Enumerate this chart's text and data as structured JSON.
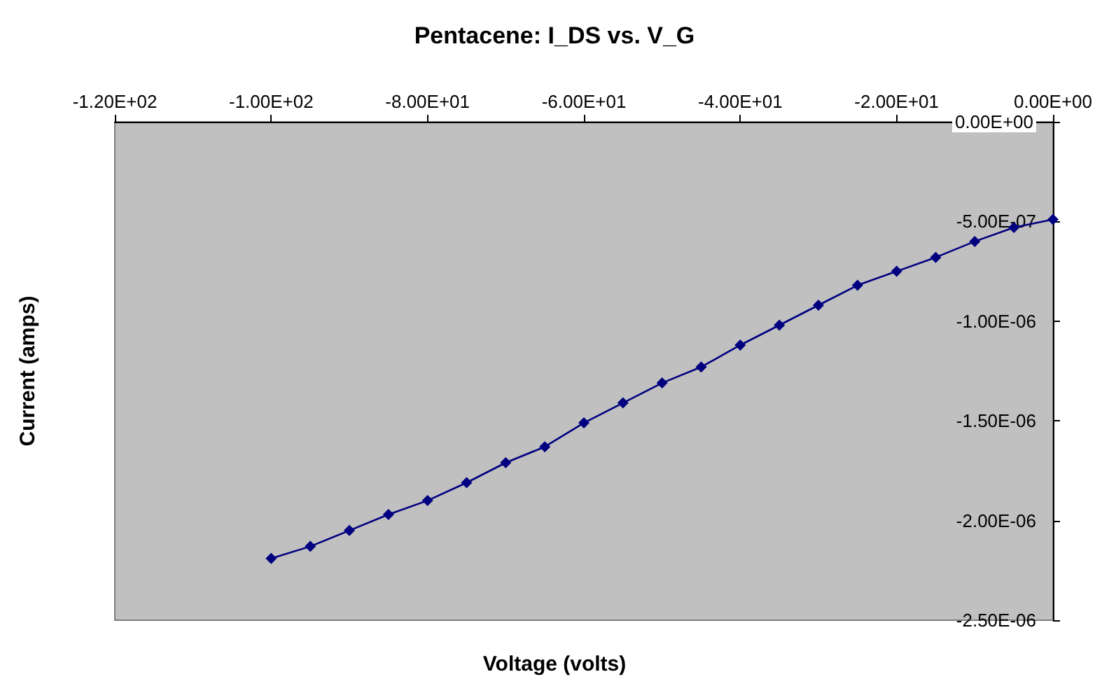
{
  "chart_data": {
    "type": "line",
    "title": "Pentacene: I_DS vs. V_G",
    "xlabel": "Voltage (volts)",
    "ylabel": "Current (amps)",
    "x": [
      -100,
      -95,
      -90,
      -85,
      -80,
      -75,
      -70,
      -65,
      -60,
      -55,
      -50,
      -45,
      -40,
      -35,
      -30,
      -25,
      -20,
      -15,
      -10,
      -5,
      0
    ],
    "series": [
      {
        "color": "#000080",
        "values": [
          -2.19e-06,
          -2.13e-06,
          -2.05e-06,
          -1.97e-06,
          -1.9e-06,
          -1.81e-06,
          -1.71e-06,
          -1.63e-06,
          -1.51e-06,
          -1.41e-06,
          -1.31e-06,
          -1.23e-06,
          -1.12e-06,
          -1.02e-06,
          -9.2e-07,
          -8.2e-07,
          -7.5e-07,
          -6.8e-07,
          -6e-07,
          -5.3e-07,
          -4.9e-07
        ]
      }
    ],
    "xlim": [
      -120,
      0
    ],
    "xticks": [
      {
        "value": -120,
        "label": "-1.20E+02"
      },
      {
        "value": -100,
        "label": "-1.00E+02"
      },
      {
        "value": -80,
        "label": "-8.00E+01"
      },
      {
        "value": -60,
        "label": "-6.00E+01"
      },
      {
        "value": -40,
        "label": "-4.00E+01"
      },
      {
        "value": -20,
        "label": "-2.00E+01"
      },
      {
        "value": 0,
        "label": "0.00E+00"
      }
    ],
    "ylim": [
      -2.5e-06,
      0
    ],
    "yticks": [
      {
        "value": -2.5e-06,
        "label": "-2.50E-06"
      },
      {
        "value": -2e-06,
        "label": "-2.00E-06"
      },
      {
        "value": -1.5e-06,
        "label": "-1.50E-06"
      },
      {
        "value": -1e-06,
        "label": "-1.00E-06"
      },
      {
        "value": -5e-07,
        "label": "-5.00E-07"
      },
      {
        "value": 0,
        "label": "0.00E+00"
      }
    ],
    "grid": false,
    "marker": "diamond",
    "line_style": "solid"
  }
}
